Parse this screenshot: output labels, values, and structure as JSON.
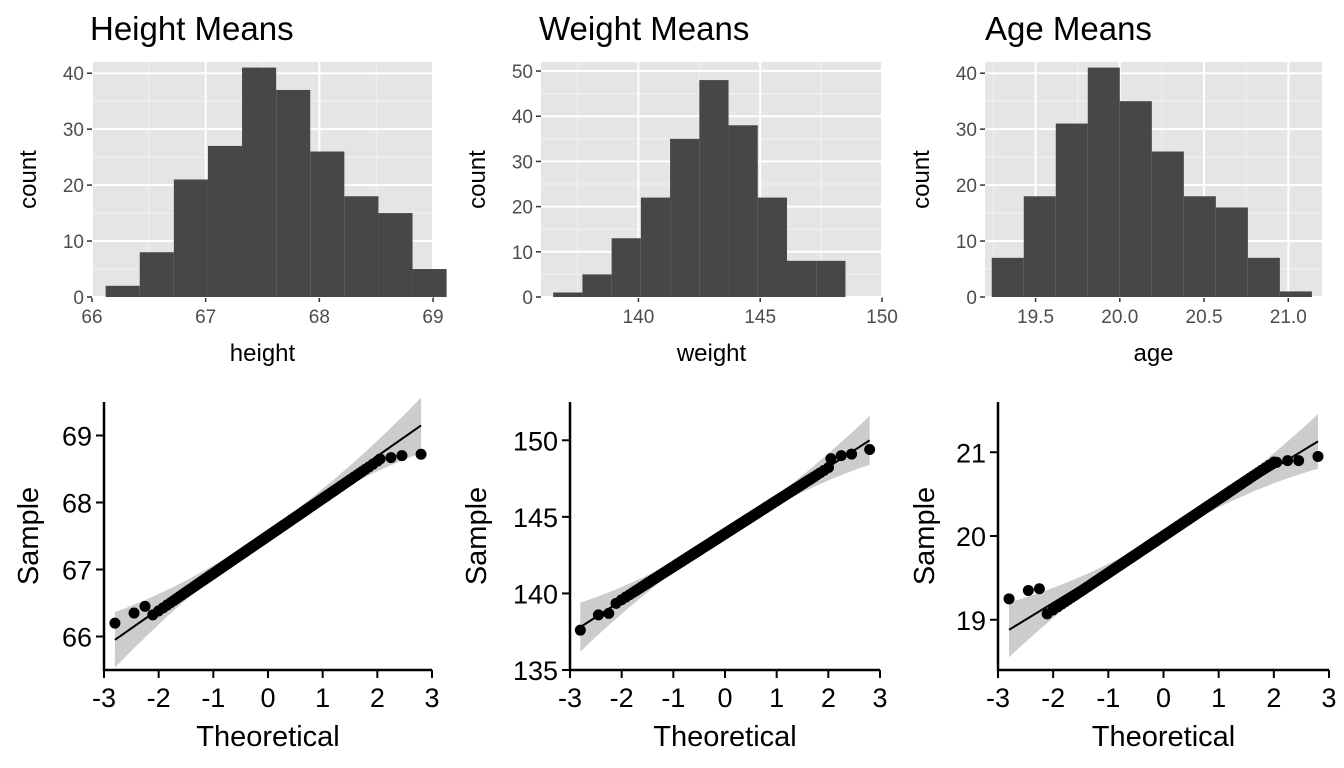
{
  "chart_data": [
    {
      "type": "bar",
      "subtype": "histogram",
      "title": "Height Means",
      "xlabel": "height",
      "ylabel": "count",
      "xlim": [
        66,
        69
      ],
      "ylim": [
        0,
        42
      ],
      "xticks": [
        "66",
        "67",
        "68",
        "69"
      ],
      "yticks": [
        "0",
        "10",
        "20",
        "30",
        "40"
      ],
      "bins": [
        {
          "from": 66.12,
          "to": 66.42,
          "count": 2
        },
        {
          "from": 66.42,
          "to": 66.72,
          "count": 8
        },
        {
          "from": 66.72,
          "to": 67.02,
          "count": 21
        },
        {
          "from": 67.02,
          "to": 67.32,
          "count": 27
        },
        {
          "from": 67.32,
          "to": 67.62,
          "count": 41
        },
        {
          "from": 67.62,
          "to": 67.92,
          "count": 37
        },
        {
          "from": 67.92,
          "to": 68.22,
          "count": 26
        },
        {
          "from": 68.22,
          "to": 68.52,
          "count": 18
        },
        {
          "from": 68.52,
          "to": 68.82,
          "count": 15
        },
        {
          "from": 68.82,
          "to": 69.12,
          "count": 5
        }
      ],
      "grid": true,
      "background": "#e5e5e5",
      "bar_color": "#474747"
    },
    {
      "type": "bar",
      "subtype": "histogram",
      "title": "Weight Means",
      "xlabel": "weight",
      "ylabel": "count",
      "xlim": [
        136,
        150
      ],
      "ylim": [
        0,
        52
      ],
      "xticks": [
        "140",
        "145",
        "150"
      ],
      "yticks": [
        "0",
        "10",
        "20",
        "30",
        "40",
        "50"
      ],
      "bins": [
        {
          "from": 136.5,
          "to": 137.7,
          "count": 1
        },
        {
          "from": 137.7,
          "to": 138.9,
          "count": 5
        },
        {
          "from": 138.9,
          "to": 140.1,
          "count": 13
        },
        {
          "from": 140.1,
          "to": 141.3,
          "count": 22
        },
        {
          "from": 141.3,
          "to": 142.5,
          "count": 35
        },
        {
          "from": 142.5,
          "to": 143.7,
          "count": 48
        },
        {
          "from": 143.7,
          "to": 144.9,
          "count": 38
        },
        {
          "from": 144.9,
          "to": 146.1,
          "count": 22
        },
        {
          "from": 146.1,
          "to": 147.3,
          "count": 8
        },
        {
          "from": 147.3,
          "to": 148.5,
          "count": 8
        }
      ],
      "grid": true,
      "background": "#e5e5e5",
      "bar_color": "#474747"
    },
    {
      "type": "bar",
      "subtype": "histogram",
      "title": "Age Means",
      "xlabel": "age",
      "ylabel": "count",
      "xlim": [
        19.2,
        21.2
      ],
      "ylim": [
        0,
        42
      ],
      "xticks": [
        "19.5",
        "20.0",
        "20.5",
        "21.0"
      ],
      "yticks": [
        "0",
        "10",
        "20",
        "30",
        "40"
      ],
      "bins": [
        {
          "from": 19.24,
          "to": 19.43,
          "count": 7
        },
        {
          "from": 19.43,
          "to": 19.62,
          "count": 18
        },
        {
          "from": 19.62,
          "to": 19.81,
          "count": 31
        },
        {
          "from": 19.81,
          "to": 20.0,
          "count": 41
        },
        {
          "from": 20.0,
          "to": 20.19,
          "count": 35
        },
        {
          "from": 20.19,
          "to": 20.38,
          "count": 26
        },
        {
          "from": 20.38,
          "to": 20.57,
          "count": 18
        },
        {
          "from": 20.57,
          "to": 20.76,
          "count": 16
        },
        {
          "from": 20.76,
          "to": 20.95,
          "count": 7
        },
        {
          "from": 20.95,
          "to": 21.14,
          "count": 1
        }
      ],
      "grid": true,
      "background": "#e5e5e5",
      "bar_color": "#474747"
    },
    {
      "type": "scatter",
      "subtype": "qq-plot",
      "xlabel": "Theoretical",
      "ylabel": "Sample",
      "xlim": [
        -3,
        3
      ],
      "ylim": [
        65.5,
        69.5
      ],
      "xticks": [
        "-3",
        "-2",
        "-1",
        "0",
        "1",
        "2",
        "3"
      ],
      "yticks": [
        "66",
        "67",
        "68",
        "69"
      ],
      "mean": 67.5,
      "sd": 0.57,
      "tail_low": [
        [
          -2.8,
          66.2
        ],
        [
          -2.45,
          66.35
        ],
        [
          -2.25,
          66.45
        ]
      ],
      "tail_high": [
        [
          2.05,
          68.65
        ],
        [
          2.25,
          68.67
        ],
        [
          2.45,
          68.7
        ],
        [
          2.8,
          68.72
        ]
      ],
      "ref_line": {
        "x": [
          -2.8,
          2.8
        ],
        "y": [
          65.95,
          69.15
        ]
      },
      "band_color": "#cccccc",
      "grid": false
    },
    {
      "type": "scatter",
      "subtype": "qq-plot",
      "xlabel": "Theoretical",
      "ylabel": "Sample",
      "xlim": [
        -3,
        3
      ],
      "ylim": [
        135,
        152.5
      ],
      "xticks": [
        "-3",
        "-2",
        "-1",
        "0",
        "1",
        "2",
        "3"
      ],
      "yticks": [
        "135",
        "140",
        "145",
        "150"
      ],
      "mean": 143.9,
      "sd": 2.2,
      "tail_low": [
        [
          -2.8,
          137.6
        ],
        [
          -2.45,
          138.6
        ],
        [
          -2.25,
          138.7
        ]
      ],
      "tail_high": [
        [
          2.05,
          148.8
        ],
        [
          2.25,
          149.0
        ],
        [
          2.45,
          149.1
        ],
        [
          2.8,
          149.4
        ]
      ],
      "ref_line": {
        "x": [
          -2.8,
          2.8
        ],
        "y": [
          137.8,
          150.0
        ]
      },
      "band_color": "#cccccc",
      "grid": false
    },
    {
      "type": "scatter",
      "subtype": "qq-plot",
      "xlabel": "Theoretical",
      "ylabel": "Sample",
      "xlim": [
        -3,
        3
      ],
      "ylim": [
        18.4,
        21.6
      ],
      "xticks": [
        "-3",
        "-2",
        "-1",
        "0",
        "1",
        "2",
        "3"
      ],
      "yticks": [
        "19",
        "20",
        "21"
      ],
      "mean": 20.0,
      "sd": 0.45,
      "tail_low": [
        [
          -2.8,
          19.25
        ],
        [
          -2.45,
          19.35
        ],
        [
          -2.25,
          19.37
        ]
      ],
      "tail_high": [
        [
          2.05,
          20.88
        ],
        [
          2.25,
          20.9
        ],
        [
          2.45,
          20.9
        ],
        [
          2.8,
          20.95
        ]
      ],
      "ref_line": {
        "x": [
          -2.8,
          2.8
        ],
        "y": [
          18.88,
          21.13
        ]
      },
      "band_color": "#cccccc",
      "grid": false
    }
  ]
}
